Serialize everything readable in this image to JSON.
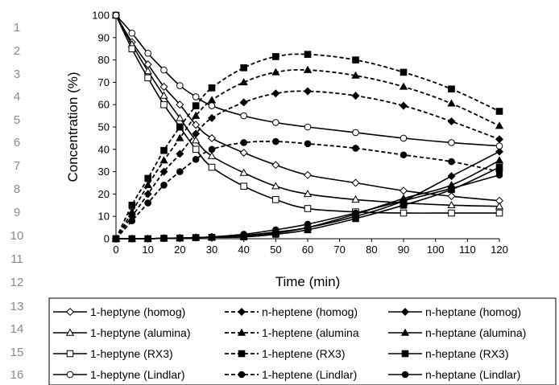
{
  "line_numbers": [
    "1",
    "2",
    "3",
    "4",
    "5",
    "6",
    "7",
    "8",
    "9",
    "10",
    "11",
    "12",
    "13",
    "14",
    "15",
    "16"
  ],
  "chart_data": {
    "type": "line",
    "title": "",
    "xlabel": "Time (min)",
    "ylabel": "Concentration (%)",
    "xlim": [
      0,
      120
    ],
    "ylim": [
      0,
      100
    ],
    "x_ticks": [
      0,
      10,
      20,
      30,
      40,
      50,
      60,
      70,
      80,
      90,
      100,
      110,
      120
    ],
    "y_ticks": [
      0,
      10,
      20,
      30,
      40,
      50,
      60,
      70,
      80,
      90,
      100
    ],
    "grid": false,
    "legend_position": "bottom",
    "series": [
      {
        "name": "1-heptyne (homog)",
        "marker": "diamond-open",
        "dash": "solid",
        "points": [
          [
            0,
            100
          ],
          [
            5,
            88
          ],
          [
            10,
            78
          ],
          [
            15,
            68
          ],
          [
            20,
            60
          ],
          [
            25,
            51
          ],
          [
            30,
            45
          ],
          [
            40,
            38.5
          ],
          [
            50,
            33
          ],
          [
            60,
            28.5
          ],
          [
            75,
            25
          ],
          [
            90,
            21.5
          ],
          [
            105,
            19
          ],
          [
            120,
            17
          ]
        ]
      },
      {
        "name": "n-heptene (homog)",
        "marker": "diamond-filled",
        "dash": "dashed",
        "points": [
          [
            0,
            0
          ],
          [
            5,
            10
          ],
          [
            10,
            20
          ],
          [
            15,
            30
          ],
          [
            20,
            38
          ],
          [
            25,
            47
          ],
          [
            30,
            54
          ],
          [
            40,
            61
          ],
          [
            50,
            65
          ],
          [
            60,
            66
          ],
          [
            75,
            64
          ],
          [
            90,
            59.5
          ],
          [
            105,
            52.5
          ],
          [
            120,
            44.5
          ]
        ]
      },
      {
        "name": "n-heptane (homog)",
        "marker": "diamond-filled",
        "dash": "solid",
        "points": [
          [
            0,
            0
          ],
          [
            5,
            0
          ],
          [
            10,
            0
          ],
          [
            15,
            0.2
          ],
          [
            20,
            0.3
          ],
          [
            25,
            0.5
          ],
          [
            30,
            0.8
          ],
          [
            40,
            1.5
          ],
          [
            50,
            3
          ],
          [
            60,
            5
          ],
          [
            75,
            10
          ],
          [
            90,
            17
          ],
          [
            105,
            28
          ],
          [
            120,
            39
          ]
        ]
      },
      {
        "name": "1-heptyne (alumina)",
        "marker": "triangle-open",
        "dash": "solid",
        "points": [
          [
            0,
            100
          ],
          [
            5,
            87
          ],
          [
            10,
            75
          ],
          [
            15,
            64
          ],
          [
            20,
            54
          ],
          [
            25,
            44
          ],
          [
            30,
            37
          ],
          [
            40,
            29.5
          ],
          [
            50,
            23.5
          ],
          [
            60,
            20
          ],
          [
            75,
            17.5
          ],
          [
            90,
            16
          ],
          [
            105,
            15
          ],
          [
            120,
            14.5
          ]
        ]
      },
      {
        "name": "1-heptene (alumina",
        "marker": "triangle-filled",
        "dash": "dashed",
        "points": [
          [
            0,
            0
          ],
          [
            5,
            12
          ],
          [
            10,
            24
          ],
          [
            15,
            35
          ],
          [
            20,
            45
          ],
          [
            25,
            55
          ],
          [
            30,
            62
          ],
          [
            40,
            70
          ],
          [
            50,
            74.5
          ],
          [
            60,
            75.5
          ],
          [
            75,
            73
          ],
          [
            90,
            68
          ],
          [
            105,
            60.5
          ],
          [
            120,
            50.5
          ]
        ]
      },
      {
        "name": "n-heptane (alumina)",
        "marker": "triangle-filled",
        "dash": "solid",
        "points": [
          [
            0,
            0
          ],
          [
            5,
            0
          ],
          [
            10,
            0
          ],
          [
            15,
            0.2
          ],
          [
            20,
            0.3
          ],
          [
            25,
            0.5
          ],
          [
            30,
            0.7
          ],
          [
            40,
            1
          ],
          [
            50,
            2.5
          ],
          [
            60,
            5
          ],
          [
            75,
            11
          ],
          [
            90,
            18
          ],
          [
            105,
            24
          ],
          [
            120,
            35
          ]
        ]
      },
      {
        "name": "1-heptyne (RX3)",
        "marker": "square-open",
        "dash": "solid",
        "points": [
          [
            0,
            100
          ],
          [
            5,
            85
          ],
          [
            10,
            72
          ],
          [
            15,
            60
          ],
          [
            20,
            50
          ],
          [
            25,
            40
          ],
          [
            30,
            32
          ],
          [
            40,
            23.5
          ],
          [
            50,
            17.5
          ],
          [
            60,
            13.5
          ],
          [
            75,
            12
          ],
          [
            90,
            11.5
          ],
          [
            105,
            11.5
          ],
          [
            120,
            11.5
          ]
        ]
      },
      {
        "name": "1-heptene (RX3)",
        "marker": "square-filled",
        "dash": "dashed",
        "points": [
          [
            0,
            0
          ],
          [
            5,
            15
          ],
          [
            10,
            27
          ],
          [
            15,
            39.5
          ],
          [
            20,
            50
          ],
          [
            25,
            59.5
          ],
          [
            30,
            67.5
          ],
          [
            40,
            76.5
          ],
          [
            50,
            81.5
          ],
          [
            60,
            82.5
          ],
          [
            75,
            80
          ],
          [
            90,
            74.5
          ],
          [
            105,
            67
          ],
          [
            120,
            57
          ]
        ]
      },
      {
        "name": "n-heptane (RX3)",
        "marker": "square-filled",
        "dash": "solid",
        "points": [
          [
            0,
            0
          ],
          [
            5,
            0
          ],
          [
            10,
            0
          ],
          [
            15,
            0.2
          ],
          [
            20,
            0.3
          ],
          [
            25,
            0.5
          ],
          [
            30,
            0.6
          ],
          [
            40,
            0.8
          ],
          [
            50,
            2
          ],
          [
            60,
            4
          ],
          [
            75,
            9
          ],
          [
            90,
            15
          ],
          [
            105,
            22
          ],
          [
            120,
            32
          ]
        ]
      },
      {
        "name": "1-heptyne (Lindlar)",
        "marker": "circle-open",
        "dash": "solid",
        "points": [
          [
            0,
            100
          ],
          [
            5,
            92
          ],
          [
            10,
            83
          ],
          [
            15,
            75.5
          ],
          [
            20,
            68.5
          ],
          [
            25,
            63.5
          ],
          [
            30,
            59.5
          ],
          [
            40,
            55
          ],
          [
            50,
            52
          ],
          [
            60,
            50
          ],
          [
            75,
            47.5
          ],
          [
            90,
            45
          ],
          [
            105,
            43
          ],
          [
            120,
            41.5
          ]
        ]
      },
      {
        "name": "1-heptene (Lindlar)",
        "marker": "circle-filled",
        "dash": "dashed",
        "points": [
          [
            0,
            0
          ],
          [
            5,
            8
          ],
          [
            10,
            16
          ],
          [
            15,
            24
          ],
          [
            20,
            30
          ],
          [
            25,
            35.5
          ],
          [
            30,
            40
          ],
          [
            40,
            43
          ],
          [
            50,
            43.5
          ],
          [
            60,
            42.5
          ],
          [
            75,
            40.5
          ],
          [
            90,
            37.5
          ],
          [
            105,
            34.5
          ],
          [
            120,
            30
          ]
        ]
      },
      {
        "name": "n-heptane (Lindlar)",
        "marker": "circle-filled",
        "dash": "solid",
        "points": [
          [
            0,
            0
          ],
          [
            5,
            0
          ],
          [
            10,
            0
          ],
          [
            15,
            0.2
          ],
          [
            20,
            0.3
          ],
          [
            25,
            0.5
          ],
          [
            30,
            0.8
          ],
          [
            40,
            2
          ],
          [
            50,
            4
          ],
          [
            60,
            6.5
          ],
          [
            75,
            11.5
          ],
          [
            90,
            17
          ],
          [
            105,
            22.5
          ],
          [
            120,
            28.5
          ]
        ]
      }
    ]
  }
}
